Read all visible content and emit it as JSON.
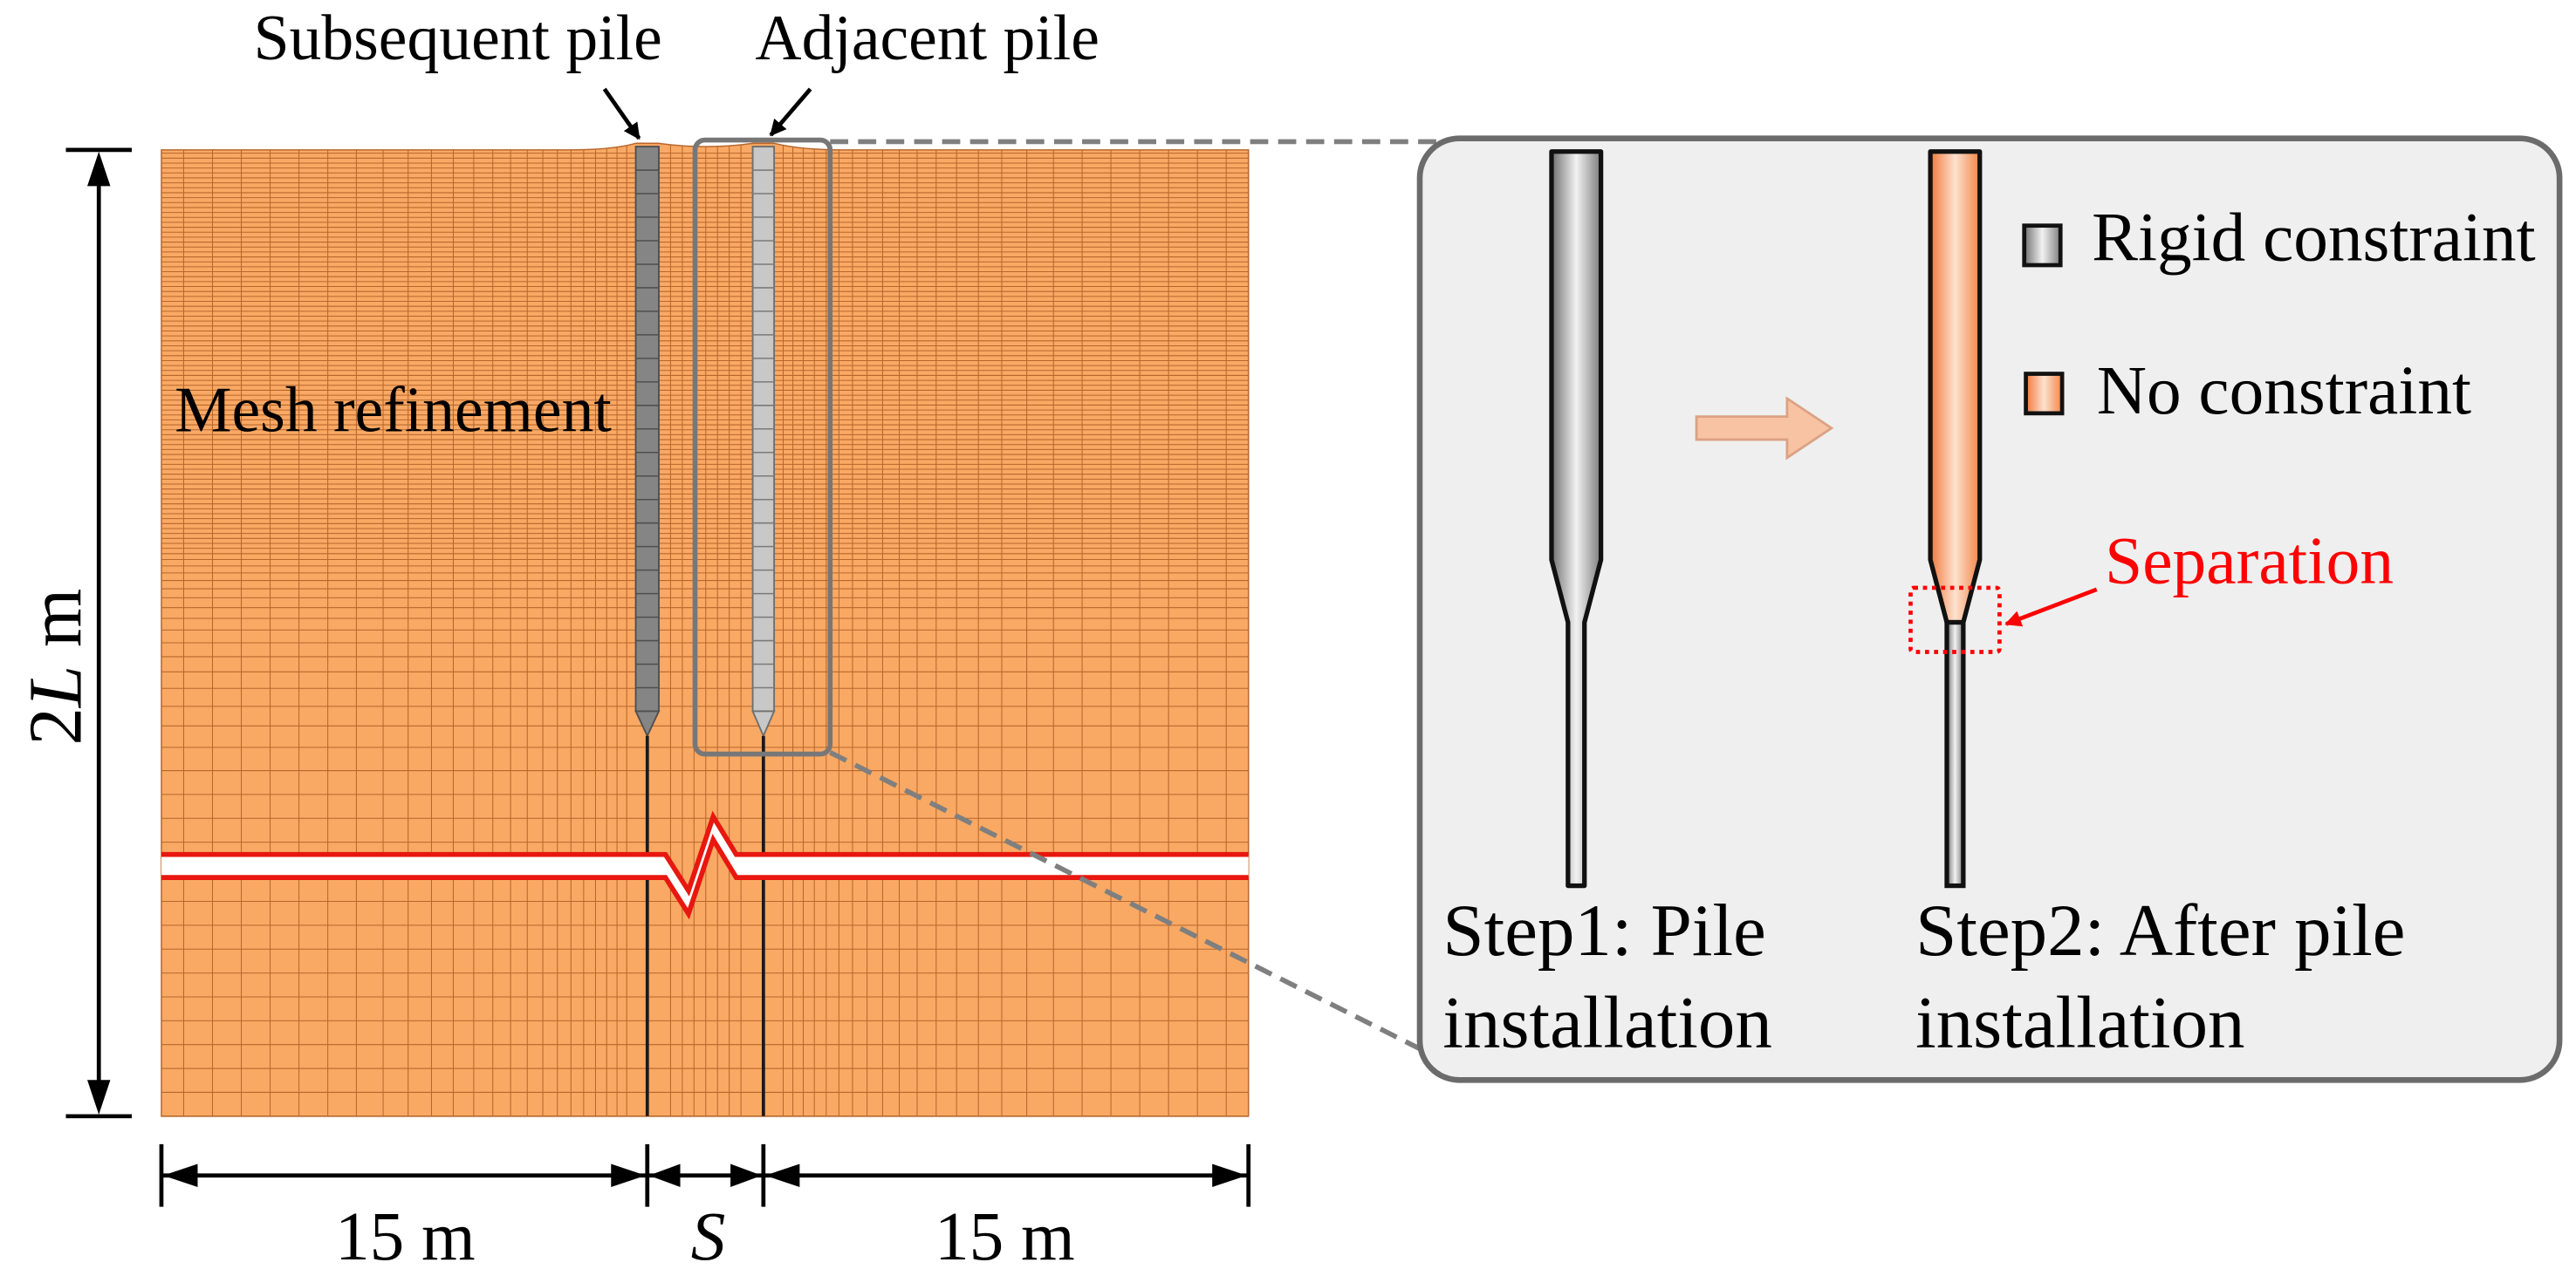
{
  "diagram": {
    "pile_labels": {
      "subsequent": "Subsequent pile",
      "adjacent": "Adjacent pile"
    },
    "mesh_label": "Mesh refinement",
    "dimensions": {
      "depth": {
        "coefficient": "2",
        "variable": "L",
        "unit": "m"
      },
      "left_width": "15 m",
      "spacing": "S",
      "right_width": "15 m"
    }
  },
  "detail": {
    "legend": {
      "rigid": "Rigid constraint",
      "none": "No constraint"
    },
    "separation": "Separation",
    "step1": {
      "line1": "Step1: Pile",
      "line2": "installation"
    },
    "step2": {
      "line1": "Step2: After pile",
      "line2": "installation"
    }
  },
  "colors": {
    "soil": "#F9A964",
    "mesh_line": "#B8672C",
    "break_line": "#E8170F",
    "separation": "#FF0000",
    "panel_fill": "#EFEFEF",
    "panel_stroke": "#6B6B6B",
    "subsequent_pile": "#858585",
    "adjacent_pile": "#C8C8C8"
  }
}
